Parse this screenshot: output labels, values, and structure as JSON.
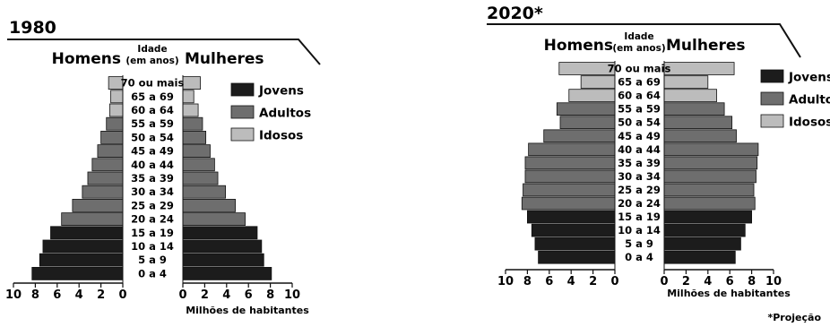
{
  "chart_data": [
    {
      "type": "bar",
      "subtype": "population-pyramid",
      "title": "1980",
      "left_label": "Homens",
      "right_label": "Mulheres",
      "center_label_line1": "Idade",
      "center_label_line2": "(em anos)",
      "xlabel": "Milhões de habitantes",
      "xlim": [
        0,
        10
      ],
      "ticks": [
        "10",
        "8",
        "6",
        "4",
        "2",
        "0"
      ],
      "ticks_right": [
        "0",
        "2",
        "4",
        "6",
        "8",
        "10"
      ],
      "categories": [
        "70 ou mais",
        "65 a 69",
        "60 a 64",
        "55 a 59",
        "50 a 54",
        "45 a 49",
        "40 a 44",
        "35 a 39",
        "30 a 34",
        "25 a 29",
        "20 a 24",
        "15 a 19",
        "10 a 14",
        "5 a 9",
        "0 a 4"
      ],
      "groups": [
        "Idosos",
        "Idosos",
        "Idosos",
        "Adultos",
        "Adultos",
        "Adultos",
        "Adultos",
        "Adultos",
        "Adultos",
        "Adultos",
        "Adultos",
        "Jovens",
        "Jovens",
        "Jovens",
        "Jovens"
      ],
      "series": [
        {
          "name": "Homens",
          "values": [
            1.3,
            1.1,
            1.2,
            1.5,
            2.0,
            2.3,
            2.8,
            3.2,
            3.7,
            4.6,
            5.6,
            6.6,
            7.3,
            7.6,
            8.3
          ]
        },
        {
          "name": "Mulheres",
          "values": [
            1.6,
            1.0,
            1.4,
            1.8,
            2.1,
            2.5,
            2.9,
            3.2,
            3.9,
            4.8,
            5.7,
            6.8,
            7.2,
            7.4,
            8.1
          ]
        }
      ],
      "legend": {
        "position": "right",
        "items": [
          {
            "label": "Jovens",
            "color": "#1c1c1c"
          },
          {
            "label": "Adultos",
            "color": "#6e6e6e"
          },
          {
            "label": "Idosos",
            "color": "#bcbcbc"
          }
        ]
      }
    },
    {
      "type": "bar",
      "subtype": "population-pyramid",
      "title": "2020*",
      "left_label": "Homens",
      "right_label": "Mulheres",
      "center_label_line1": "Idade",
      "center_label_line2": "(em anos)",
      "xlabel": "Milhões de habitantes",
      "xlim": [
        0,
        10
      ],
      "ticks": [
        "10",
        "8",
        "6",
        "4",
        "2",
        "0"
      ],
      "ticks_right": [
        "0",
        "2",
        "4",
        "6",
        "8",
        "10"
      ],
      "categories": [
        "70 ou mais",
        "65 a 69",
        "60 a 64",
        "55 a 59",
        "50 a 54",
        "45 a 49",
        "40 a 44",
        "35 a 39",
        "30 a 34",
        "25 a 29",
        "20 a 24",
        "15 a 19",
        "10 a 14",
        "5 a 9",
        "0 a 4"
      ],
      "groups": [
        "Idosos",
        "Idosos",
        "Idosos",
        "Adultos",
        "Adultos",
        "Adultos",
        "Adultos",
        "Adultos",
        "Adultos",
        "Adultos",
        "Adultos",
        "Jovens",
        "Jovens",
        "Jovens",
        "Jovens"
      ],
      "series": [
        {
          "name": "Homens",
          "values": [
            5.1,
            3.1,
            4.2,
            5.3,
            5.0,
            6.5,
            7.9,
            8.2,
            8.2,
            8.4,
            8.5,
            8.0,
            7.6,
            7.3,
            7.0
          ]
        },
        {
          "name": "Mulheres",
          "values": [
            6.4,
            4.0,
            4.8,
            5.5,
            6.2,
            6.6,
            8.6,
            8.5,
            8.4,
            8.2,
            8.3,
            8.0,
            7.4,
            7.0,
            6.5
          ]
        }
      ],
      "legend": {
        "position": "right",
        "items": [
          {
            "label": "Jovens",
            "color": "#1c1c1c"
          },
          {
            "label": "Adultos",
            "color": "#6e6e6e"
          },
          {
            "label": "Idosos",
            "color": "#bcbcbc"
          }
        ]
      },
      "footnote": "*Projeção"
    }
  ]
}
